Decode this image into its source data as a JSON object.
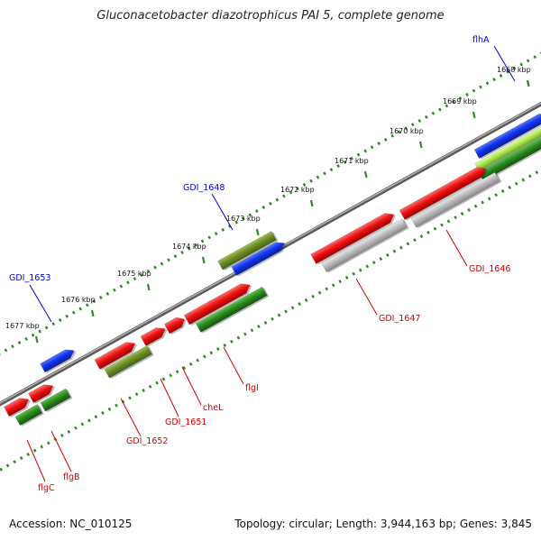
{
  "title": "Gluconacetobacter diazotrophicus PAI 5, complete genome",
  "accession": "Accession: NC_010125",
  "summary": "Topology: circular; Length: 3,944,163 bp; Genes: 3,845",
  "colors": {
    "backbone": "#8c8c8c",
    "red": "#ee1111",
    "green": "#2a8a1e",
    "olive": "#6e8e24",
    "blue": "#1133ee",
    "lime": "#a8e84a",
    "gray": "#bdbdbd",
    "label_red": "#cc0000",
    "label_blue": "#0000cc"
  },
  "ticks": [
    {
      "label": "1668 kbp"
    },
    {
      "label": "1669 kbp"
    },
    {
      "label": "1670 kbp"
    },
    {
      "label": "1671 kbp"
    },
    {
      "label": "1672 kbp"
    },
    {
      "label": "1673 kbp"
    },
    {
      "label": "1674 kbp"
    },
    {
      "label": "1675 kbp"
    },
    {
      "label": "1676 kbp"
    },
    {
      "label": "1677 kbp"
    }
  ],
  "gene_labels": [
    {
      "text": "flhA",
      "color": "blue"
    },
    {
      "text": "GDI_1648",
      "color": "blue"
    },
    {
      "text": "GDI_1653",
      "color": "blue"
    },
    {
      "text": "GDI_1646",
      "color": "red"
    },
    {
      "text": "GDI_1647",
      "color": "red"
    },
    {
      "text": "flgI",
      "color": "red"
    },
    {
      "text": "cheL",
      "color": "red"
    },
    {
      "text": "GDI_1651",
      "color": "red"
    },
    {
      "text": "GDI_1652",
      "color": "red"
    },
    {
      "text": "flgB",
      "color": "red"
    },
    {
      "text": "flgC",
      "color": "red"
    }
  ]
}
